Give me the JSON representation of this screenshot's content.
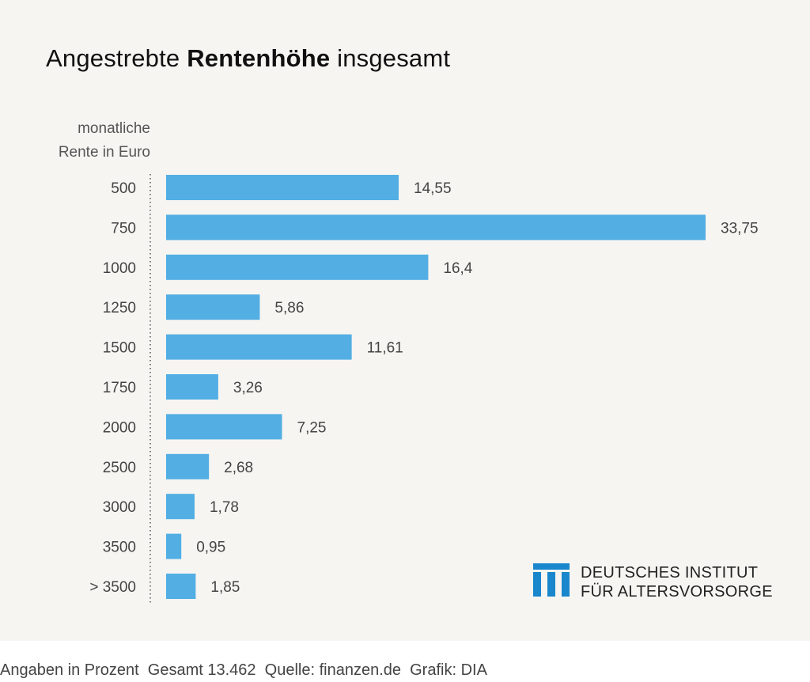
{
  "chart_data": {
    "type": "bar",
    "orientation": "horizontal",
    "title": {
      "regular": "Angestrebte ",
      "bold": "Rentenhöhe",
      "tail": " insgesamt"
    },
    "ylabel": [
      "monatliche",
      "Rente in Euro"
    ],
    "categories": [
      "500",
      "750",
      "1000",
      "1250",
      "1500",
      "1750",
      "2000",
      "2500",
      "3000",
      "3500",
      "> 3500"
    ],
    "values": [
      14.55,
      33.75,
      16.4,
      5.86,
      11.61,
      3.26,
      7.25,
      2.68,
      1.78,
      0.95,
      1.85
    ],
    "value_labels": [
      "14,55",
      "33,75",
      "16,4",
      "5,86",
      "11,61",
      "3,26",
      "7,25",
      "2,68",
      "1,78",
      "0,95",
      "1,85"
    ],
    "xlim": [
      0,
      33.75
    ],
    "grid": false,
    "bar_color": "#52aee3"
  },
  "branding": {
    "line1": "DEUTSCHES INSTITUT",
    "line2": "FÜR ALTERSVORSORGE",
    "logo_color": "#1a86cc"
  },
  "footer": "Angaben in Prozent  Gesamt 13.462  Quelle: finanzen.de  Grafik: DIA"
}
